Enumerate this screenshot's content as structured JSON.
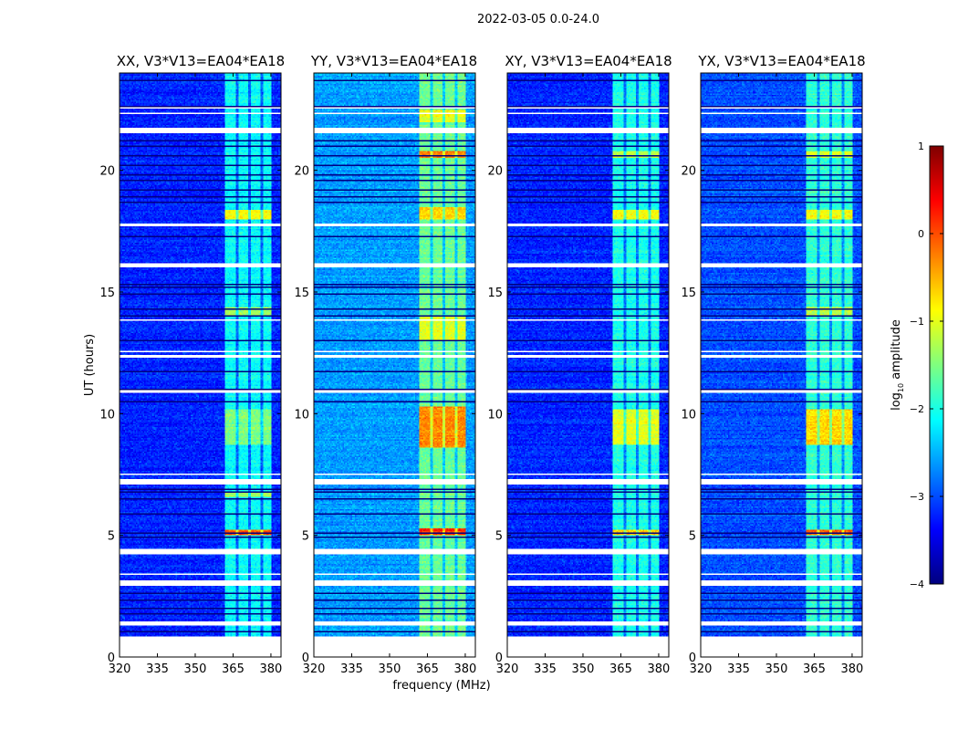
{
  "chart_data": {
    "type": "heatmap",
    "title": "2022-03-05 0.0-24.0",
    "xlabel": "frequency (MHz)",
    "ylabel": "UT (hours)",
    "xlim": [
      320,
      384
    ],
    "ylim": [
      0,
      24
    ],
    "xticks": [
      "320",
      "335",
      "350",
      "365",
      "380"
    ],
    "xtick_values": [
      320,
      335,
      350,
      365,
      380
    ],
    "yticks": [
      "0",
      "5",
      "10",
      "15",
      "20"
    ],
    "ytick_values": [
      0,
      5,
      10,
      15,
      20
    ],
    "colorbar": {
      "label_main": "log",
      "label_sub": "10",
      "label_rest": " amplitude",
      "range": [
        -4,
        1
      ],
      "ticks": [
        "1",
        "0",
        "−1",
        "−2",
        "−3",
        "−4"
      ],
      "tick_values": [
        1,
        0,
        -1,
        -2,
        -3,
        -4
      ],
      "colormap": "jet"
    },
    "band": {
      "start_mhz": 362,
      "end_mhz": 380,
      "gaps_mhz": [
        366.5,
        371.5,
        376.5
      ]
    },
    "flagged_white_hours": [
      [
        0,
        0.85
      ],
      [
        1.3,
        1.45
      ],
      [
        1.55,
        1.6
      ],
      [
        2.95,
        3.15
      ],
      [
        3.4,
        3.45
      ],
      [
        4.2,
        4.45
      ],
      [
        5.65,
        5.7
      ],
      [
        7.1,
        7.3
      ],
      [
        7.5,
        7.55
      ],
      [
        10.85,
        10.95
      ],
      [
        12.3,
        12.4
      ],
      [
        12.55,
        12.6
      ],
      [
        13.85,
        13.9
      ],
      [
        16.0,
        16.2
      ],
      [
        16.95,
        17.0
      ],
      [
        17.7,
        17.8
      ],
      [
        21.55,
        21.75
      ],
      [
        21.95,
        22.0
      ],
      [
        22.3,
        22.35
      ],
      [
        22.55,
        22.6
      ]
    ],
    "dark_lines_hours": [
      0.9,
      1.05,
      1.75,
      2.0,
      2.35,
      2.6,
      2.7,
      4.1,
      4.9,
      5.1,
      5.85,
      6.5,
      6.75,
      6.9,
      7.7,
      10.5,
      11.0,
      11.3,
      11.7,
      13.0,
      14.0,
      14.3,
      14.9,
      15.2,
      15.3,
      17.3,
      18.7,
      18.9,
      19.2,
      19.6,
      19.8,
      20.2,
      20.6,
      21.0,
      21.2,
      22.6,
      23.7
    ],
    "series": [
      {
        "name": "XX, V3*V13=EA04*EA18",
        "background": -3.2,
        "band_level": -2.1,
        "events": [
          {
            "hours": [
              5.0,
              5.2
            ],
            "level": 0.0
          },
          {
            "hours": [
              18.0,
              18.4
            ],
            "level": -0.9
          },
          {
            "hours": [
              8.7,
              10.2
            ],
            "level": -1.5
          },
          {
            "hours": [
              14.0,
              14.4
            ],
            "level": -1.3
          },
          {
            "hours": [
              6.6,
              6.8
            ],
            "level": -1.3
          }
        ]
      },
      {
        "name": "YY, V3*V13=EA04*EA18",
        "background": -2.6,
        "band_level": -1.6,
        "events": [
          {
            "hours": [
              5.0,
              5.3
            ],
            "level": 0.2
          },
          {
            "hours": [
              8.6,
              10.3
            ],
            "level": -0.3
          },
          {
            "hours": [
              18.0,
              18.5
            ],
            "level": -0.7
          },
          {
            "hours": [
              20.5,
              20.8
            ],
            "level": -0.2
          },
          {
            "hours": [
              22.0,
              22.5
            ],
            "level": -0.9
          },
          {
            "hours": [
              13.0,
              14.0
            ],
            "level": -1.0
          }
        ]
      },
      {
        "name": "XY, V3*V13=EA04*EA18",
        "background": -3.2,
        "band_level": -2.0,
        "events": [
          {
            "hours": [
              5.0,
              5.2
            ],
            "level": -0.6
          },
          {
            "hours": [
              18.0,
              18.4
            ],
            "level": -0.9
          },
          {
            "hours": [
              8.7,
              10.2
            ],
            "level": -1.0
          },
          {
            "hours": [
              20.5,
              20.8
            ],
            "level": -1.2
          }
        ]
      },
      {
        "name": "YX, V3*V13=EA04*EA18",
        "background": -3.0,
        "band_level": -1.9,
        "events": [
          {
            "hours": [
              5.0,
              5.2
            ],
            "level": 0.0
          },
          {
            "hours": [
              8.7,
              10.2
            ],
            "level": -0.7
          },
          {
            "hours": [
              18.0,
              18.4
            ],
            "level": -0.9
          },
          {
            "hours": [
              20.5,
              20.8
            ],
            "level": -1.0
          },
          {
            "hours": [
              14.0,
              14.4
            ],
            "level": -1.2
          }
        ]
      }
    ]
  }
}
